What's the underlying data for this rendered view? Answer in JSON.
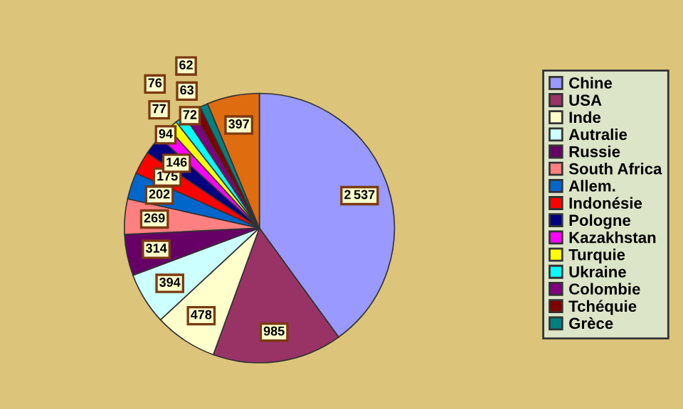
{
  "chart_data": {
    "type": "pie",
    "categories": [
      "Chine",
      "USA",
      "Inde",
      "Autralie",
      "Russie",
      "South Africa",
      "Allem.",
      "Indonésie",
      "Pologne",
      "Kazakhstan",
      "Turquie",
      "Ukraine",
      "Colombie",
      "Tchéquie",
      "Grèce",
      null
    ],
    "values": [
      2537,
      985,
      478,
      394,
      314,
      269,
      202,
      175,
      146,
      94,
      77,
      76,
      72,
      63,
      62,
      397
    ],
    "colors": [
      "#9999ff",
      "#993366",
      "#ffffcc",
      "#ccffff",
      "#660066",
      "#ff8080",
      "#0066cc",
      "#ff0000",
      "#000080",
      "#ff00ff",
      "#ffff00",
      "#00ffff",
      "#800080",
      "#800000",
      "#008080",
      "#e06c10"
    ],
    "data_labels": true,
    "legend": "right"
  }
}
